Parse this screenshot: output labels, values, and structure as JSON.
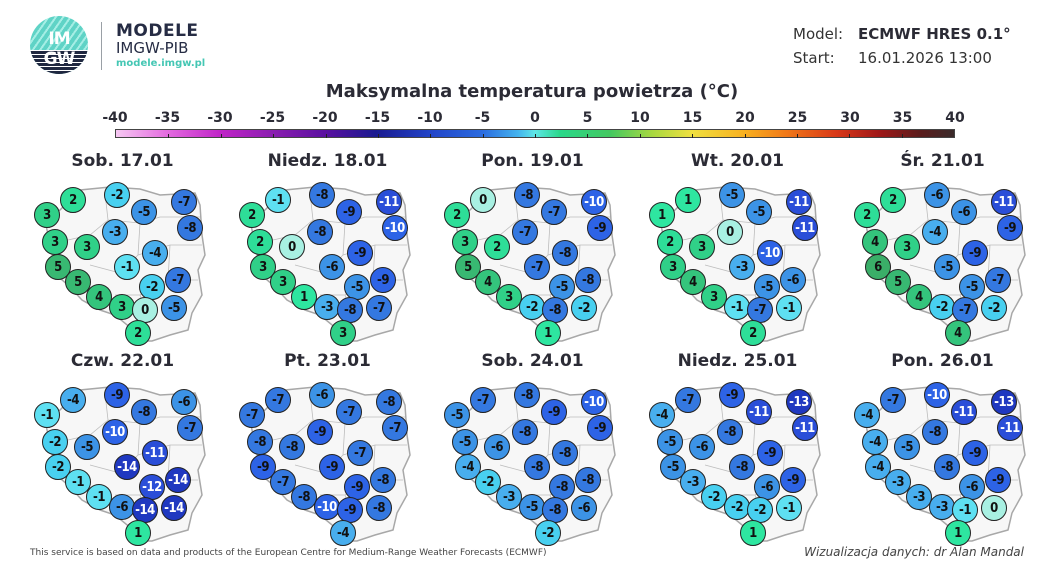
{
  "brand": {
    "logo_line1": "IM",
    "logo_line2": "GW",
    "title": "MODELE",
    "subtitle": "IMGW-PIB",
    "url": "modele.imgw.pl"
  },
  "meta": {
    "model_label": "Model:",
    "model_value": "ECMWF HRES 0.1°",
    "start_label": "Start:",
    "start_value": "16.01.2026 13:00"
  },
  "title": "Maksymalna temperatura powietrza (°C)",
  "colorbar": {
    "ticks": [
      "-40",
      "-35",
      "-30",
      "-25",
      "-20",
      "-15",
      "-10",
      "-5",
      "0",
      "5",
      "10",
      "15",
      "20",
      "25",
      "30",
      "35",
      "40"
    ],
    "min": -40,
    "max": 40
  },
  "footer": {
    "left": "This service is based on data and products of the European Centre for Medium-Range Weather Forecasts (ECMWF)",
    "right": "Wizualizacja danych: dr Alan Mandal"
  },
  "chart_data": {
    "type": "map-small-multiples",
    "title": "Maksymalna temperatura powietrza (°C)",
    "model": "ECMWF HRES 0.1°",
    "start": "16.01.2026 13:00",
    "unit": "°C",
    "colorbar_range": [
      -40,
      40
    ],
    "station_order_note": "20 stations per map, same positions in every panel",
    "panels": [
      {
        "label": "Sob. 17.01",
        "values": [
          2,
          3,
          -2,
          -5,
          -7,
          -8,
          -3,
          3,
          3,
          -4,
          5,
          -1,
          -7,
          5,
          -2,
          4,
          3,
          0,
          -5,
          2
        ]
      },
      {
        "label": "Niedz. 18.01",
        "values": [
          -1,
          2,
          -8,
          -9,
          -11,
          -10,
          -8,
          2,
          0,
          -9,
          3,
          -6,
          -9,
          3,
          -5,
          1,
          -3,
          -8,
          -7,
          3
        ]
      },
      {
        "label": "Pon. 19.01",
        "values": [
          0,
          2,
          -8,
          -7,
          -10,
          -9,
          -7,
          3,
          2,
          -8,
          5,
          -7,
          -8,
          4,
          -5,
          3,
          -2,
          -8,
          -2,
          1
        ]
      },
      {
        "label": "Wt. 20.01",
        "values": [
          1,
          1,
          -5,
          -5,
          -11,
          -11,
          0,
          2,
          3,
          -10,
          3,
          -3,
          -6,
          4,
          -5,
          3,
          -1,
          -7,
          -1,
          2
        ]
      },
      {
        "label": "Śr. 21.01",
        "values": [
          2,
          2,
          -6,
          -6,
          -11,
          -9,
          -4,
          4,
          3,
          -9,
          6,
          -5,
          -7,
          5,
          -5,
          4,
          -2,
          -7,
          -2,
          4
        ]
      },
      {
        "label": "Czw. 22.01",
        "values": [
          -4,
          -1,
          -9,
          -8,
          -6,
          -7,
          -10,
          -2,
          -5,
          -11,
          -2,
          -14,
          -14,
          -1,
          -12,
          -1,
          -6,
          -14,
          -14,
          1
        ]
      },
      {
        "label": "Pt. 23.01",
        "values": [
          -7,
          -7,
          -6,
          -7,
          -8,
          -7,
          -9,
          -8,
          -8,
          -7,
          -9,
          -9,
          -8,
          -7,
          -9,
          -8,
          -10,
          -9,
          -8,
          -4
        ]
      },
      {
        "label": "Sob. 24.01",
        "values": [
          -7,
          -5,
          -8,
          -9,
          -10,
          -9,
          -8,
          -5,
          -6,
          -8,
          -4,
          -8,
          -8,
          -2,
          -8,
          -3,
          -5,
          -8,
          -6,
          -2
        ]
      },
      {
        "label": "Niedz. 25.01",
        "values": [
          -7,
          -4,
          -9,
          -11,
          -13,
          -11,
          -8,
          -5,
          -6,
          -9,
          -5,
          -8,
          -9,
          -3,
          -6,
          -2,
          -2,
          -2,
          -1,
          1
        ]
      },
      {
        "label": "Pon. 26.01",
        "values": [
          -7,
          -4,
          -10,
          -11,
          -13,
          -11,
          -8,
          -4,
          -5,
          -9,
          -4,
          -8,
          -9,
          -3,
          -6,
          -3,
          -3,
          -1,
          0,
          1
        ]
      }
    ]
  }
}
